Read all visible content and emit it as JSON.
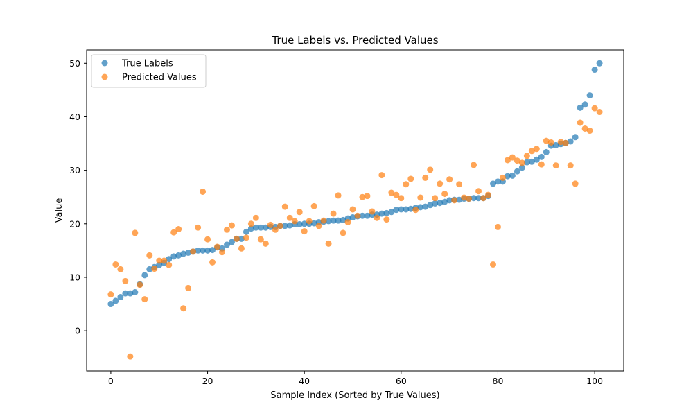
{
  "chart_data": {
    "type": "scatter",
    "title": "True Labels vs. Predicted Values",
    "xlabel": "Sample Index (Sorted by True Values)",
    "ylabel": "Value",
    "xlim": [
      -5,
      106
    ],
    "ylim": [
      -7.5,
      52.5
    ],
    "xticks": [
      0,
      20,
      40,
      60,
      80,
      100
    ],
    "yticks": [
      0,
      10,
      20,
      30,
      40,
      50
    ],
    "grid": false,
    "legend": "upper-left",
    "series": [
      {
        "name": "True Labels",
        "color": "#1f77b4",
        "x": [
          0,
          1,
          2,
          3,
          4,
          5,
          6,
          7,
          8,
          9,
          10,
          11,
          12,
          13,
          14,
          15,
          16,
          17,
          18,
          19,
          20,
          21,
          22,
          23,
          24,
          25,
          26,
          27,
          28,
          29,
          30,
          31,
          32,
          33,
          34,
          35,
          36,
          37,
          38,
          39,
          40,
          41,
          42,
          43,
          44,
          45,
          46,
          47,
          48,
          49,
          50,
          51,
          52,
          53,
          54,
          55,
          56,
          57,
          58,
          59,
          60,
          61,
          62,
          63,
          64,
          65,
          66,
          67,
          68,
          69,
          70,
          71,
          72,
          73,
          74,
          75,
          76,
          77,
          78,
          79,
          80,
          81,
          82,
          83,
          84,
          85,
          86,
          87,
          88,
          89,
          90,
          91,
          92,
          93,
          94,
          95,
          96,
          97,
          98,
          99,
          100,
          101
        ],
        "y": [
          5.0,
          5.6,
          6.3,
          7.0,
          7.0,
          7.2,
          8.7,
          10.4,
          11.5,
          11.9,
          12.3,
          12.7,
          13.4,
          13.9,
          14.1,
          14.4,
          14.6,
          14.8,
          15.0,
          15.0,
          15.0,
          15.1,
          15.6,
          15.4,
          16.1,
          16.6,
          17.2,
          17.2,
          18.5,
          19.1,
          19.3,
          19.3,
          19.3,
          19.4,
          19.4,
          19.6,
          19.6,
          19.7,
          19.9,
          19.9,
          20.0,
          20.0,
          20.1,
          20.3,
          20.4,
          20.5,
          20.6,
          20.6,
          20.7,
          21.0,
          21.2,
          21.4,
          21.5,
          21.5,
          21.7,
          21.7,
          21.9,
          22.0,
          22.2,
          22.6,
          22.7,
          22.7,
          22.8,
          23.0,
          23.1,
          23.2,
          23.5,
          23.8,
          23.9,
          24.1,
          24.4,
          24.5,
          24.5,
          24.7,
          24.7,
          24.8,
          24.8,
          24.8,
          25.2,
          27.5,
          27.9,
          27.9,
          28.9,
          29.0,
          29.8,
          30.5,
          31.5,
          31.6,
          32.0,
          32.5,
          33.4,
          34.6,
          34.7,
          34.9,
          35.1,
          35.4,
          36.2,
          41.7,
          42.3,
          44.0,
          48.8,
          50.0
        ]
      },
      {
        "name": "Predicted Values",
        "color": "#ff7f0e",
        "x": [
          0,
          1,
          2,
          3,
          4,
          5,
          6,
          7,
          8,
          9,
          10,
          11,
          12,
          13,
          14,
          15,
          16,
          17,
          18,
          19,
          20,
          21,
          22,
          23,
          24,
          25,
          26,
          27,
          28,
          29,
          30,
          31,
          32,
          33,
          34,
          35,
          36,
          37,
          38,
          39,
          40,
          41,
          42,
          43,
          44,
          45,
          46,
          47,
          48,
          49,
          50,
          51,
          52,
          53,
          54,
          55,
          56,
          57,
          58,
          59,
          60,
          61,
          62,
          63,
          64,
          65,
          66,
          67,
          68,
          69,
          70,
          71,
          72,
          73,
          74,
          75,
          76,
          77,
          78,
          79,
          80,
          81,
          82,
          83,
          84,
          85,
          86,
          87,
          88,
          89,
          90,
          91,
          92,
          93,
          94,
          95,
          96,
          97,
          98,
          99,
          100,
          101
        ],
        "y": [
          6.8,
          12.4,
          11.5,
          9.3,
          -4.8,
          18.3,
          8.6,
          5.9,
          14.1,
          11.6,
          13.1,
          13.1,
          12.3,
          18.4,
          19.0,
          4.2,
          8.0,
          14.8,
          19.3,
          26.0,
          17.1,
          12.8,
          15.7,
          14.7,
          18.9,
          19.7,
          17.2,
          15.4,
          17.4,
          20.0,
          21.1,
          17.1,
          16.3,
          19.8,
          18.9,
          19.6,
          23.2,
          21.1,
          20.5,
          22.2,
          18.6,
          20.5,
          23.3,
          19.6,
          20.6,
          16.3,
          21.9,
          25.3,
          18.3,
          20.3,
          22.7,
          21.5,
          25.0,
          25.2,
          22.3,
          21.1,
          29.1,
          20.8,
          25.8,
          25.4,
          24.8,
          27.4,
          28.4,
          22.6,
          24.9,
          28.6,
          30.1,
          24.8,
          27.5,
          25.6,
          28.3,
          24.4,
          27.4,
          24.9,
          24.7,
          31.0,
          26.1,
          24.8,
          25.4,
          12.4,
          19.4,
          28.6,
          31.9,
          32.4,
          31.8,
          31.4,
          32.7,
          33.6,
          34.0,
          31.1,
          35.5,
          35.2,
          30.9,
          35.3,
          35.1,
          30.9,
          27.5,
          38.9,
          37.8,
          37.4,
          41.6,
          40.9
        ]
      }
    ]
  }
}
